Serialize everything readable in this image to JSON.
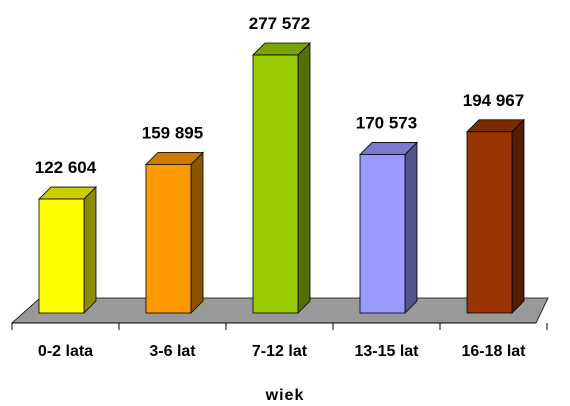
{
  "chart_data": {
    "type": "bar",
    "style": "3d",
    "categories": [
      "0-2 lata",
      "3-6 lat",
      "7-12 lat",
      "13-15 lat",
      "16-18 lat"
    ],
    "values": [
      122604,
      159895,
      277572,
      170573,
      194967
    ],
    "value_labels": [
      "122 604",
      "159 895",
      "277 572",
      "170 573",
      "194 967"
    ],
    "bar_colors": [
      "#ffff00",
      "#ff9900",
      "#99cc00",
      "#9999ff",
      "#993300"
    ],
    "floor_color": "#999999",
    "title": "",
    "xlabel": "wiek",
    "ylabel": "",
    "ylim": [
      0,
      300000
    ],
    "grid": false,
    "legend": "none"
  }
}
